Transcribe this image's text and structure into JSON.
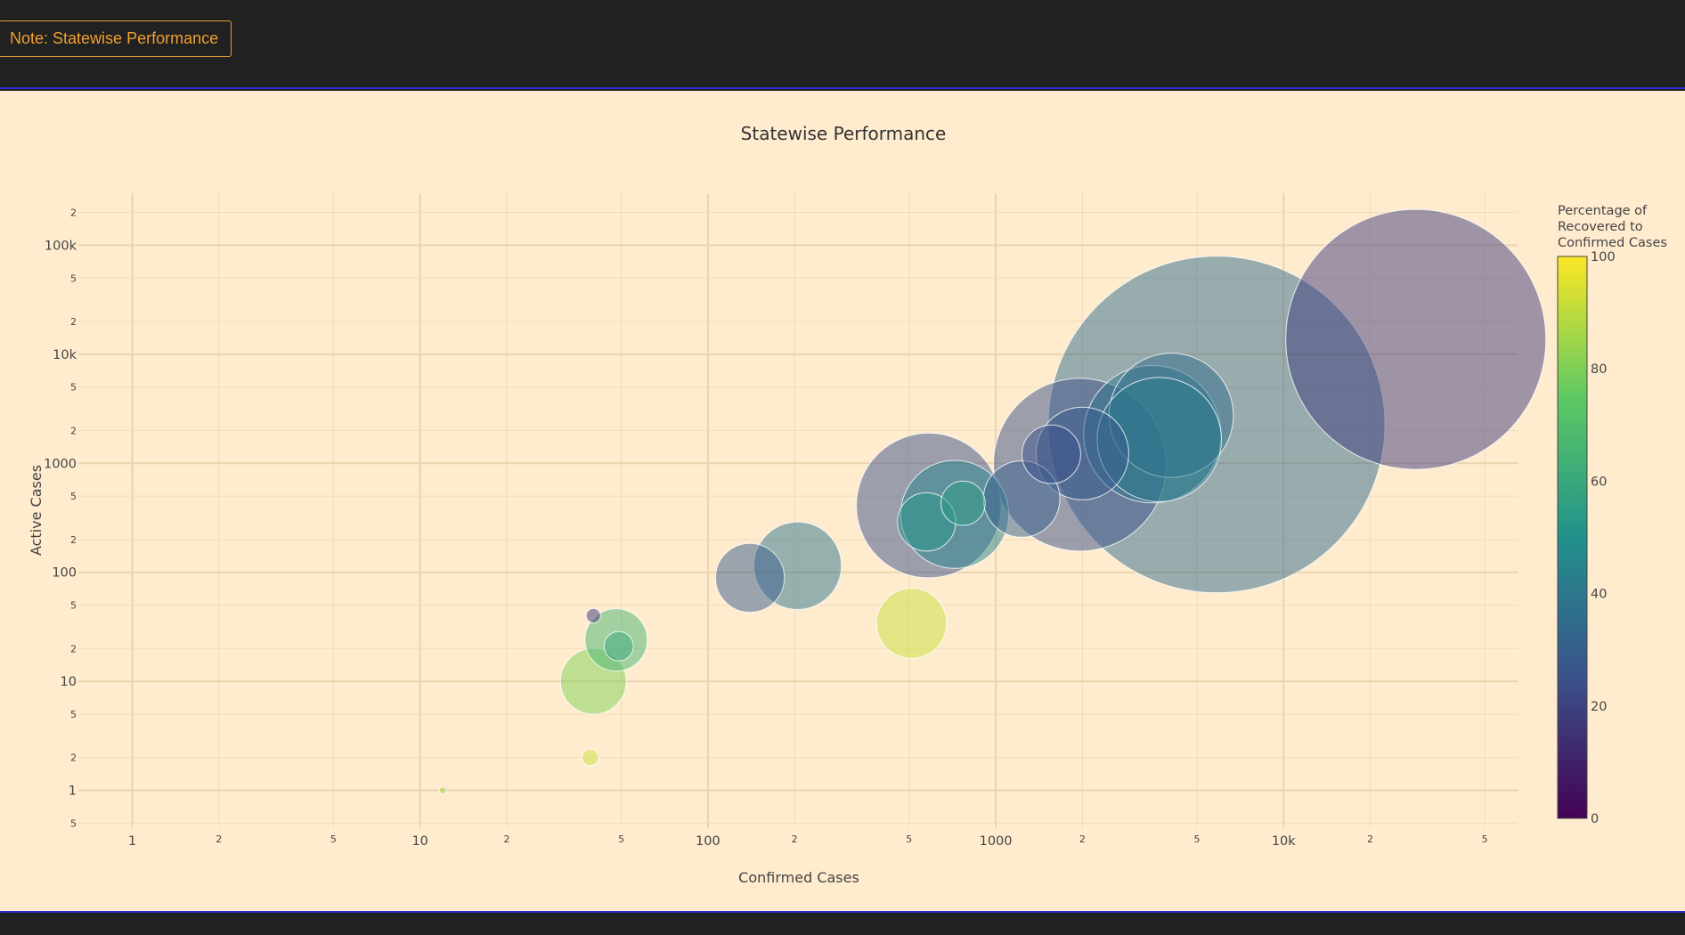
{
  "toolbar": {
    "note_label": "Note: Statewise Performance"
  },
  "colors": {
    "background": "#ffecce",
    "bar": "#212121",
    "accent": "#f0a030"
  },
  "chart_data": {
    "type": "scatter",
    "title": "Statewise Performance",
    "xlabel": "Confirmed Cases",
    "ylabel": "Active Cases",
    "x_scale": "log",
    "y_scale": "log",
    "xlim": [
      0.65,
      65000
    ],
    "ylim": [
      0.45,
      300000
    ],
    "grid": true,
    "x_major_ticks": [
      {
        "value": 1,
        "label": "1"
      },
      {
        "value": 10,
        "label": "10"
      },
      {
        "value": 100,
        "label": "100"
      },
      {
        "value": 1000,
        "label": "1000"
      },
      {
        "value": 10000,
        "label": "10k"
      }
    ],
    "x_minor_ticks": [
      {
        "value": 2,
        "label": "2"
      },
      {
        "value": 5,
        "label": "5"
      },
      {
        "value": 20,
        "label": "2"
      },
      {
        "value": 50,
        "label": "5"
      },
      {
        "value": 200,
        "label": "2"
      },
      {
        "value": 500,
        "label": "5"
      },
      {
        "value": 2000,
        "label": "2"
      },
      {
        "value": 5000,
        "label": "5"
      },
      {
        "value": 20000,
        "label": "2"
      },
      {
        "value": 50000,
        "label": "5"
      }
    ],
    "y_major_ticks": [
      {
        "value": 1,
        "label": "1"
      },
      {
        "value": 10,
        "label": "10"
      },
      {
        "value": 100,
        "label": "100"
      },
      {
        "value": 1000,
        "label": "1000"
      },
      {
        "value": 10000,
        "label": "10k"
      },
      {
        "value": 100000,
        "label": "100k"
      }
    ],
    "y_minor_ticks": [
      {
        "value": 0.5,
        "label": "5"
      },
      {
        "value": 2,
        "label": "2"
      },
      {
        "value": 5,
        "label": "5"
      },
      {
        "value": 20,
        "label": "2"
      },
      {
        "value": 50,
        "label": "5"
      },
      {
        "value": 200,
        "label": "2"
      },
      {
        "value": 500,
        "label": "5"
      },
      {
        "value": 2000,
        "label": "2"
      },
      {
        "value": 5000,
        "label": "5"
      },
      {
        "value": 20000,
        "label": "2"
      },
      {
        "value": 50000,
        "label": "5"
      },
      {
        "value": 200000,
        "label": "2"
      }
    ],
    "colorbar": {
      "title_lines": [
        "Percentage of",
        "Recovered to",
        "Confirmed Cases"
      ],
      "ticks": [
        0,
        20,
        40,
        60,
        80,
        100
      ],
      "range": [
        0,
        100
      ],
      "colorscale": [
        "#440154",
        "#3b528b",
        "#21918c",
        "#5ec962",
        "#fde725"
      ]
    },
    "points": [
      {
        "x": 28800,
        "y": 13700,
        "size": 19700,
        "pct": 18
      },
      {
        "x": 5850,
        "y": 2270,
        "size": 33000,
        "pct": 34
      },
      {
        "x": 4070,
        "y": 2750,
        "size": 4500,
        "pct": 36
      },
      {
        "x": 3500,
        "y": 1850,
        "size": 5500,
        "pct": 39
      },
      {
        "x": 3700,
        "y": 1650,
        "size": 4500,
        "pct": 41
      },
      {
        "x": 1960,
        "y": 970,
        "size": 8700,
        "pct": 24
      },
      {
        "x": 2000,
        "y": 1230,
        "size": 2500,
        "pct": 28
      },
      {
        "x": 1560,
        "y": 1210,
        "size": 1000,
        "pct": 25
      },
      {
        "x": 1230,
        "y": 470,
        "size": 1700,
        "pct": 30
      },
      {
        "x": 585,
        "y": 410,
        "size": 6100,
        "pct": 24
      },
      {
        "x": 720,
        "y": 340,
        "size": 3400,
        "pct": 45
      },
      {
        "x": 575,
        "y": 290,
        "size": 990,
        "pct": 52
      },
      {
        "x": 770,
        "y": 430,
        "size": 570,
        "pct": 55
      },
      {
        "x": 510,
        "y": 34,
        "size": 1430,
        "pct": 92
      },
      {
        "x": 205,
        "y": 115,
        "size": 2230,
        "pct": 38
      },
      {
        "x": 140,
        "y": 89,
        "size": 1380,
        "pct": 28
      },
      {
        "x": 48,
        "y": 24,
        "size": 1130,
        "pct": 65
      },
      {
        "x": 49,
        "y": 21,
        "size": 250,
        "pct": 60
      },
      {
        "x": 40,
        "y": 10,
        "size": 1260,
        "pct": 80
      },
      {
        "x": 40,
        "y": 40,
        "size": 60,
        "pct": 15
      },
      {
        "x": 39,
        "y": 2,
        "size": 80,
        "pct": 92
      },
      {
        "x": 12,
        "y": 1,
        "size": 15,
        "pct": 85
      }
    ]
  }
}
